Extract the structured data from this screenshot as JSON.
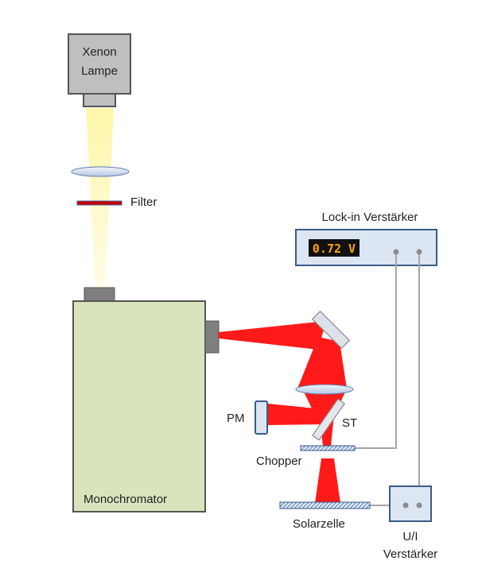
{
  "labels": {
    "lamp_line1": "Xenon",
    "lamp_line2": "Lampe",
    "filter": "Filter",
    "lockin_title": "Lock-in Verstärker",
    "lockin_display": "0.72 V",
    "monochromator": "Monochromator",
    "pm": "PM",
    "st": "ST",
    "chopper": "Chopper",
    "solarzelle": "Solarzelle",
    "ui_line1": "U/I",
    "ui_line2": "Verstärker"
  },
  "colors": {
    "lamp_body": "#bfbfbf",
    "lamp_beam": "#fdf7b0",
    "monochromator_fill": "#d8e4bc",
    "beam_red": "#ff1a1a",
    "box_fill": "#dce6f2",
    "box_stroke": "#3a5a8c",
    "display_bg": "#111111",
    "display_text": "#ffa500",
    "filter_red": "#c00000",
    "wire": "#a6a6a6"
  }
}
